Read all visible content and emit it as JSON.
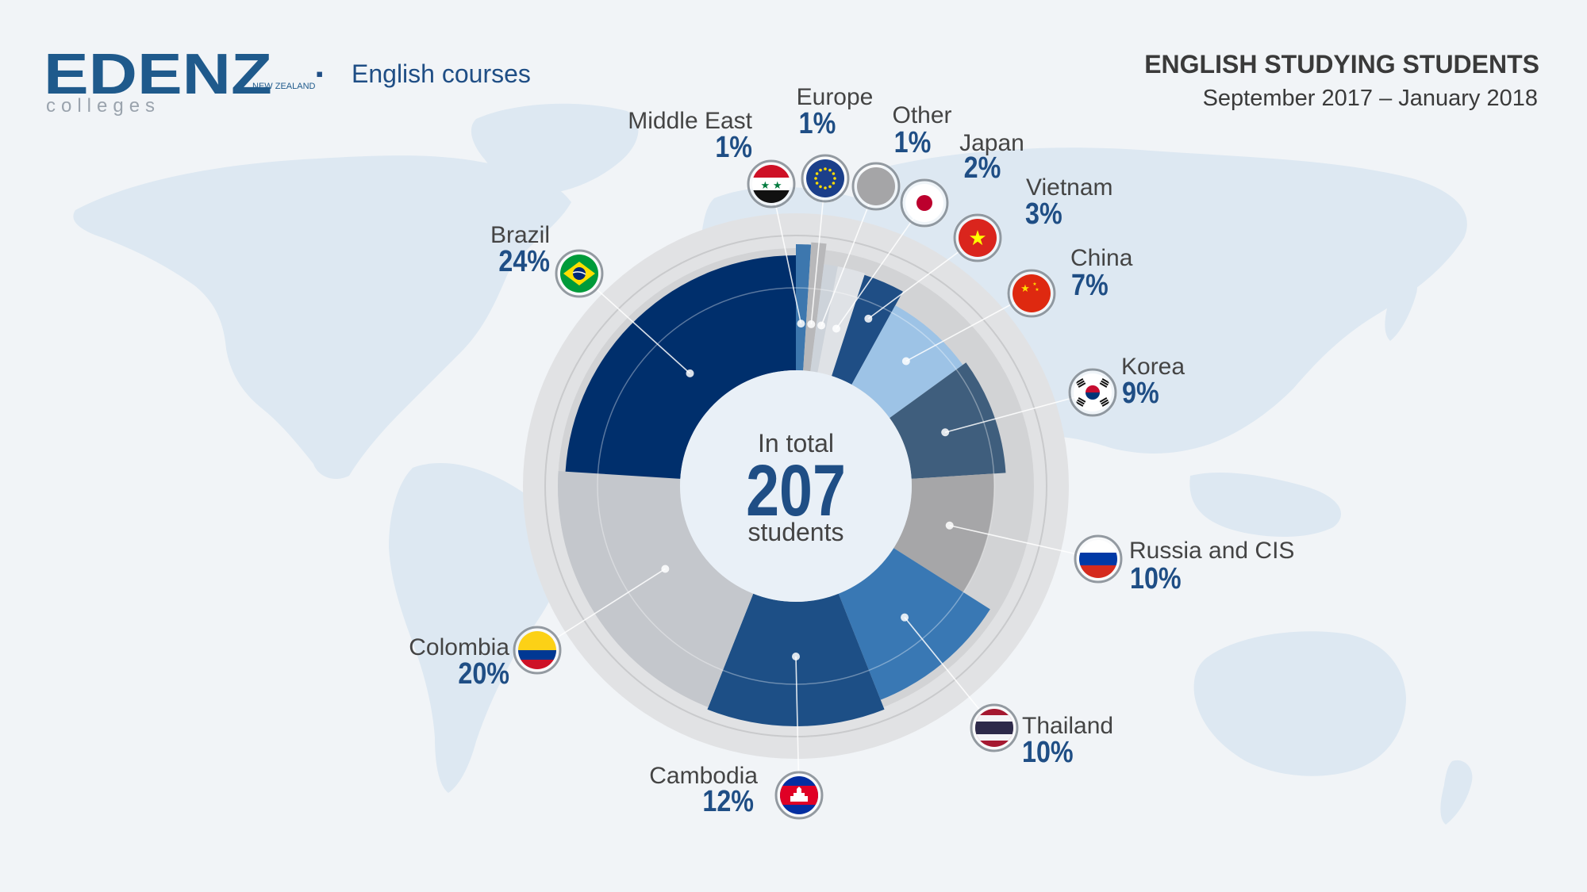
{
  "brand": {
    "logo_text": "EDENZ",
    "logo_tagline": "colleges",
    "logo_mark": "NEW ZEALAND",
    "separator": "▪",
    "subtitle": "English courses"
  },
  "header": {
    "title": "ENGLISH STUDYING STUDENTS",
    "period": "September 2017 – January 2018"
  },
  "center": {
    "line1": "In total",
    "total": "207",
    "line3": "students"
  },
  "colors": {
    "background": "#f1f4f7",
    "map": "#dde8f2",
    "ring_outer": "#e1e2e4",
    "ring_mid": "#d4d5d7",
    "center_disc": "#e9f0f7",
    "accent": "#1f4e85",
    "label": "#444444"
  },
  "chart_data": {
    "type": "pie",
    "variant": "donut",
    "total": 207,
    "categories": [
      "Middle East",
      "Europe",
      "Other",
      "Japan",
      "Vietnam",
      "China",
      "Korea",
      "Russia and CIS",
      "Thailand",
      "Cambodia",
      "Colombia",
      "Brazil"
    ],
    "values": [
      1,
      1,
      1,
      2,
      3,
      7,
      9,
      10,
      10,
      12,
      20,
      24
    ],
    "value_labels": [
      "1%",
      "1%",
      "1%",
      "2%",
      "3%",
      "7%",
      "9%",
      "10%",
      "10%",
      "12%",
      "20%",
      "24%"
    ],
    "slice_colors": [
      "#3d77ae",
      "#b8b8ba",
      "#cdd3da",
      "#dfe2e6",
      "#1f4e85",
      "#9dc3e6",
      "#3f5e7d",
      "#a6a6a8",
      "#3978b4",
      "#1d4f86",
      "#c4c7cc",
      "#002f6c"
    ],
    "icons": [
      "flag-middle-east-icon",
      "flag-eu-icon",
      "other-icon",
      "flag-japan-icon",
      "flag-vietnam-icon",
      "flag-china-icon",
      "flag-korea-icon",
      "flag-russia-icon",
      "flag-thailand-icon",
      "flag-cambodia-icon",
      "flag-colombia-icon",
      "flag-brazil-icon"
    ],
    "start": "12 o'clock",
    "direction": "clockwise",
    "legend": "labels around the ring with flag icons"
  }
}
